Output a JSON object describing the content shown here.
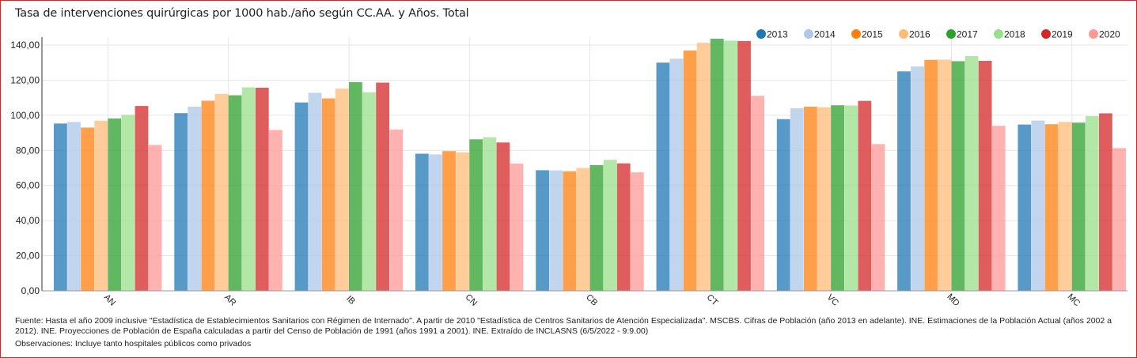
{
  "chart_data": {
    "type": "bar",
    "title": "Tasa de intervenciones quirúrgicas por 1000 hab./año según CC.AA. y Años. Total",
    "xlabel": "",
    "ylabel": "",
    "ylim": [
      0,
      140
    ],
    "yticks": [
      "0,00",
      "20,00",
      "40,00",
      "60,00",
      "80,00",
      "100,00",
      "120,00",
      "140,00"
    ],
    "ytick_values": [
      0,
      20,
      40,
      60,
      80,
      100,
      120,
      140
    ],
    "grid": true,
    "legend_position": "top-right",
    "categories": [
      "AN",
      "AR",
      "IB",
      "CN",
      "CB",
      "CT",
      "VC",
      "MD",
      "MC"
    ],
    "series": [
      {
        "name": "2013",
        "color": "#1f77b4",
        "values": [
          95.3,
          101.2,
          107.3,
          78.1,
          68.7,
          130.0,
          97.8,
          125.0,
          94.7
        ]
      },
      {
        "name": "2014",
        "color": "#aec7e8",
        "values": [
          96.2,
          104.9,
          112.8,
          77.7,
          68.6,
          132.2,
          104.0,
          127.8,
          97.0
        ]
      },
      {
        "name": "2015",
        "color": "#ff7f0e",
        "values": [
          93.0,
          108.3,
          109.6,
          79.6,
          68.1,
          136.9,
          104.9,
          131.6,
          94.9
        ]
      },
      {
        "name": "2016",
        "color": "#ffbb78",
        "values": [
          96.9,
          112.2,
          115.2,
          78.9,
          70.0,
          141.3,
          104.6,
          131.7,
          96.2
        ]
      },
      {
        "name": "2017",
        "color": "#2ca02c",
        "values": [
          98.2,
          111.4,
          118.9,
          86.3,
          71.6,
          143.6,
          105.7,
          130.8,
          95.8
        ]
      },
      {
        "name": "2018",
        "color": "#98df8a",
        "values": [
          100.2,
          115.9,
          113.1,
          87.5,
          74.6,
          142.5,
          105.6,
          133.7,
          99.5
        ]
      },
      {
        "name": "2019",
        "color": "#d62728",
        "values": [
          105.3,
          115.7,
          118.6,
          84.5,
          72.6,
          142.3,
          108.2,
          131.0,
          101.1
        ]
      },
      {
        "name": "2020",
        "color": "#ff9896",
        "values": [
          83.1,
          91.6,
          91.9,
          72.5,
          67.5,
          111.1,
          83.6,
          94.0,
          81.3
        ]
      }
    ]
  },
  "footer": {
    "source": "Fuente: Hasta el año 2009 inclusive \"Estadística de Establecimientos Sanitarios con Régimen de Internado\". A partir de 2010 \"Estadística de Centros Sanitarios de Atención Especializada\". MSCBS. Cifras de Población (año 2013 en adelante). INE. Estimaciones de la Población Actual (años 2002 a 2012). INE. Proyecciones de Población de España calculadas a partir del Censo de Población de 1991 (años 1991 a 2001). INE. Extraído de INCLASNS (6/5/2022 - 9:9.00)",
    "observations": "Observaciones: Incluye tanto hospitales públicos como privados"
  }
}
